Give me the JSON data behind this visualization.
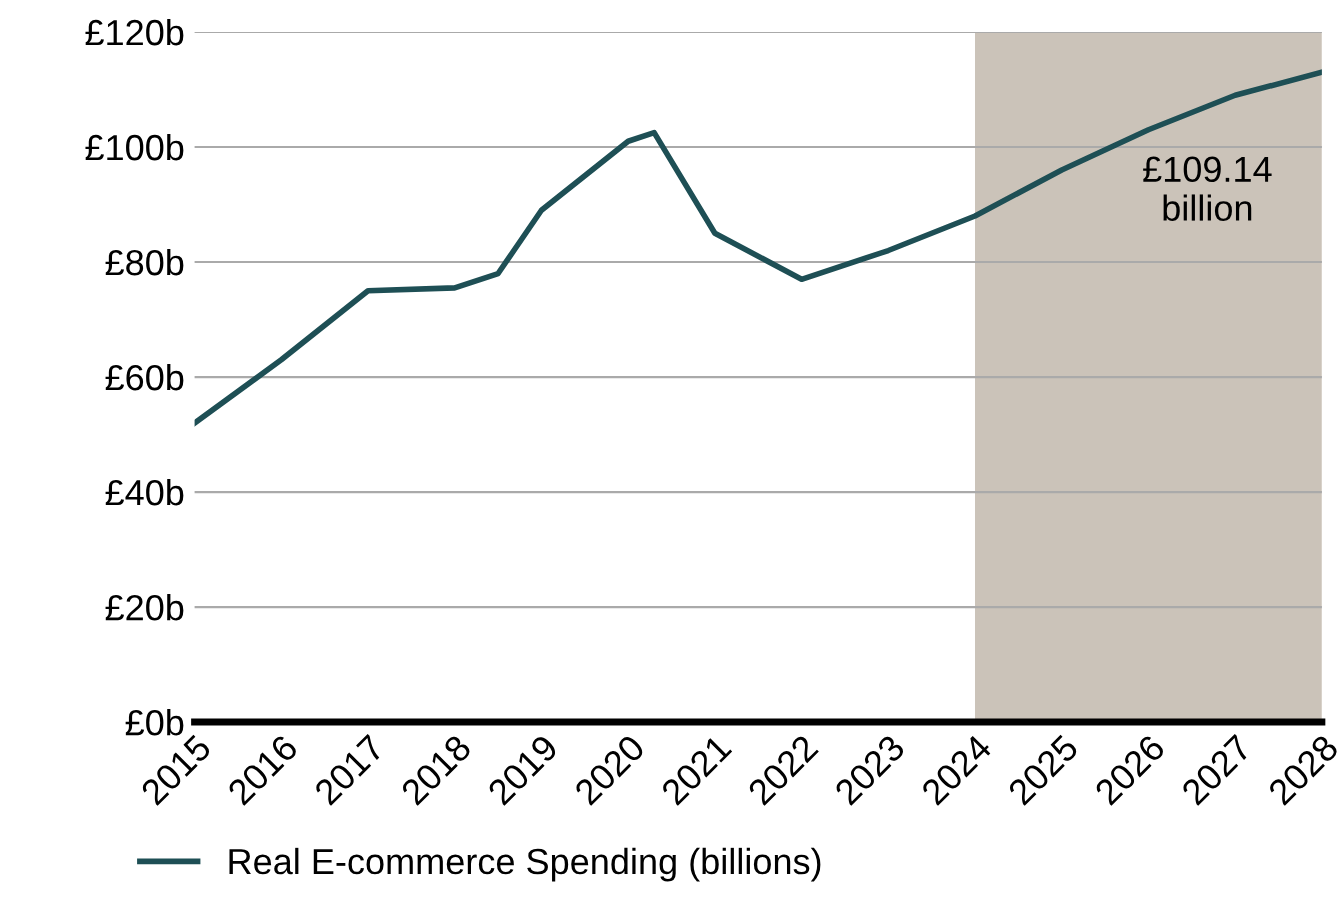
{
  "chart_data": {
    "type": "line",
    "x": [
      2015,
      2016,
      2017,
      2018,
      2018.5,
      2019,
      2020,
      2020.3,
      2021,
      2022,
      2023,
      2024,
      2025,
      2026,
      2027,
      2028
    ],
    "series": [
      {
        "name": "Real E-commerce Spending (billions)",
        "color": "#1e4f55",
        "values": [
          52,
          63,
          75,
          75.5,
          78,
          89,
          101,
          102.5,
          85,
          77,
          82,
          88,
          96,
          103,
          109,
          113
        ]
      }
    ],
    "xlim": [
      2015,
      2028
    ],
    "ylim": [
      0,
      120
    ],
    "xticks": [
      2015,
      2016,
      2017,
      2018,
      2019,
      2020,
      2021,
      2022,
      2023,
      2024,
      2025,
      2026,
      2027,
      2028
    ],
    "yticks": [
      {
        "value": 0,
        "label": "£0b"
      },
      {
        "value": 20,
        "label": "£20b"
      },
      {
        "value": 40,
        "label": "£40b"
      },
      {
        "value": 60,
        "label": "£60b"
      },
      {
        "value": 80,
        "label": "£80b"
      },
      {
        "value": 100,
        "label": "£100b"
      },
      {
        "value": 120,
        "label": "£120b"
      }
    ],
    "bands": [
      {
        "axis": "x",
        "from": 2024,
        "to": 2028,
        "color": "#cbc3b9"
      }
    ],
    "annotations": [
      {
        "text": "£109.14\nbillion",
        "x": 2027,
        "y": 109.14
      }
    ],
    "grid": "y",
    "legend": "bottom",
    "marker": "none",
    "line_style": "solid"
  }
}
